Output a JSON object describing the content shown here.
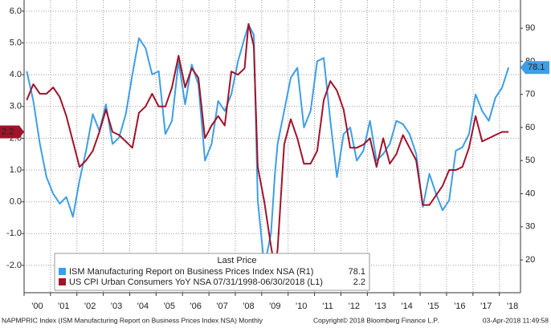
{
  "chart_data": {
    "type": "line",
    "x": [
      2000.1,
      2000.35,
      2000.6,
      2000.85,
      2001.1,
      2001.35,
      2001.6,
      2001.85,
      2002.1,
      2002.35,
      2002.6,
      2002.85,
      2003.1,
      2003.35,
      2003.6,
      2003.85,
      2004.1,
      2004.35,
      2004.6,
      2004.85,
      2005.1,
      2005.35,
      2005.6,
      2005.85,
      2006.1,
      2006.35,
      2006.6,
      2006.85,
      2007.1,
      2007.35,
      2007.6,
      2007.85,
      2008.1,
      2008.35,
      2008.5,
      2008.7,
      2008.85,
      2009.1,
      2009.35,
      2009.5,
      2009.6,
      2009.85,
      2010.1,
      2010.35,
      2010.6,
      2010.85,
      2011.1,
      2011.35,
      2011.6,
      2011.85,
      2012.1,
      2012.35,
      2012.6,
      2012.85,
      2013.1,
      2013.35,
      2013.6,
      2013.85,
      2014.1,
      2014.35,
      2014.6,
      2014.85,
      2015.1,
      2015.35,
      2015.6,
      2015.85,
      2016.1,
      2016.35,
      2016.6,
      2016.85,
      2017.1,
      2017.35,
      2017.6,
      2017.85,
      2018.1,
      2018.35
    ],
    "series": [
      {
        "name": "ISM Manufacturing Report on Business Prices Index NSA  (R1)",
        "color": "#3e9ee6",
        "axis": "y2",
        "last_price": "78.1",
        "values": [
          77,
          68,
          55,
          45,
          40,
          37,
          39,
          33,
          44,
          53,
          64,
          59,
          67,
          55,
          57,
          64,
          76,
          87,
          84,
          76,
          77,
          58,
          62,
          80,
          67,
          79,
          73,
          50,
          55,
          68,
          65,
          70,
          80,
          87,
          91,
          88,
          38,
          18,
          28,
          46,
          55,
          65,
          75,
          78,
          60,
          65,
          80,
          81,
          62,
          45,
          58,
          60,
          50,
          53,
          62,
          50,
          52,
          55,
          62,
          61,
          58,
          52,
          36,
          46,
          40,
          35,
          38,
          53,
          54,
          58,
          70,
          65,
          62,
          69,
          72,
          78.1
        ]
      },
      {
        "name": "US CPI Urban Consumers YoY NSA 07/31/1998-06/30/2018  (L1)",
        "color": "#a0132a",
        "last_price": "2.2",
        "values": [
          3.2,
          3.7,
          3.4,
          3.4,
          3.6,
          3.3,
          2.7,
          1.9,
          1.1,
          1.3,
          1.6,
          2.2,
          2.9,
          2.2,
          2.1,
          1.9,
          1.7,
          2.8,
          3.0,
          3.4,
          3.0,
          3.0,
          3.6,
          4.6,
          3.6,
          4.2,
          3.9,
          2.0,
          2.4,
          2.7,
          2.4,
          4.1,
          4.0,
          4.2,
          5.6,
          4.9,
          1.1,
          0.0,
          -1.4,
          -2.1,
          -1.5,
          1.8,
          2.6,
          2.0,
          1.2,
          1.2,
          1.6,
          3.2,
          3.8,
          3.5,
          2.9,
          1.7,
          1.7,
          1.8,
          2.0,
          1.1,
          2.0,
          1.2,
          1.5,
          2.1,
          1.7,
          1.3,
          -0.1,
          -0.1,
          0.2,
          0.5,
          1.0,
          1.0,
          1.1,
          1.7,
          2.7,
          1.9,
          2.0,
          2.1,
          2.2,
          2.2
        ]
      }
    ],
    "legend_title": "Last Price",
    "xlim": [
      2000,
      2018.8
    ],
    "xticks": [
      {
        "value": 2000,
        "label": "'00"
      },
      {
        "value": 2001,
        "label": "'01"
      },
      {
        "value": 2002,
        "label": "'02"
      },
      {
        "value": 2003,
        "label": "'03"
      },
      {
        "value": 2004,
        "label": "'04"
      },
      {
        "value": 2005,
        "label": "'05"
      },
      {
        "value": 2006,
        "label": "'06"
      },
      {
        "value": 2007,
        "label": "'07"
      },
      {
        "value": 2008,
        "label": "'08"
      },
      {
        "value": 2009,
        "label": "'09"
      },
      {
        "value": 2010,
        "label": "'10"
      },
      {
        "value": 2011,
        "label": "'11"
      },
      {
        "value": 2012,
        "label": "'12"
      },
      {
        "value": 2013,
        "label": "'13"
      },
      {
        "value": 2014,
        "label": "'14"
      },
      {
        "value": 2015,
        "label": "'15"
      },
      {
        "value": 2016,
        "label": "'16"
      },
      {
        "value": 2017,
        "label": "'17"
      },
      {
        "value": 2018,
        "label": "'18"
      }
    ],
    "ylim": [
      -2.86,
      6.35
    ],
    "yticks": [
      {
        "value": -2,
        "label": "-2.0"
      },
      {
        "value": -1,
        "label": "-1.0"
      },
      {
        "value": 0,
        "label": "0.0"
      },
      {
        "value": 1,
        "label": "1.0"
      },
      {
        "value": 2,
        "label": "2.0"
      },
      {
        "value": 3,
        "label": "3.0"
      },
      {
        "value": 4,
        "label": "4.0"
      },
      {
        "value": 5,
        "label": "5.0"
      },
      {
        "value": 6,
        "label": "6.0"
      }
    ],
    "y2lim": [
      10.1,
      98.5
    ],
    "y2ticks": [
      20,
      30,
      40,
      50,
      60,
      70,
      80,
      90
    ],
    "grid": true,
    "footer_left": "NAPMPRIC Index (ISM Manufacturing Report on Business Prices Index NSA)  Monthly",
    "footer_center": "Copyright© 2018 Bloomberg Finance L.P.",
    "footer_right": "03-Apr-2018 11:49:58"
  }
}
